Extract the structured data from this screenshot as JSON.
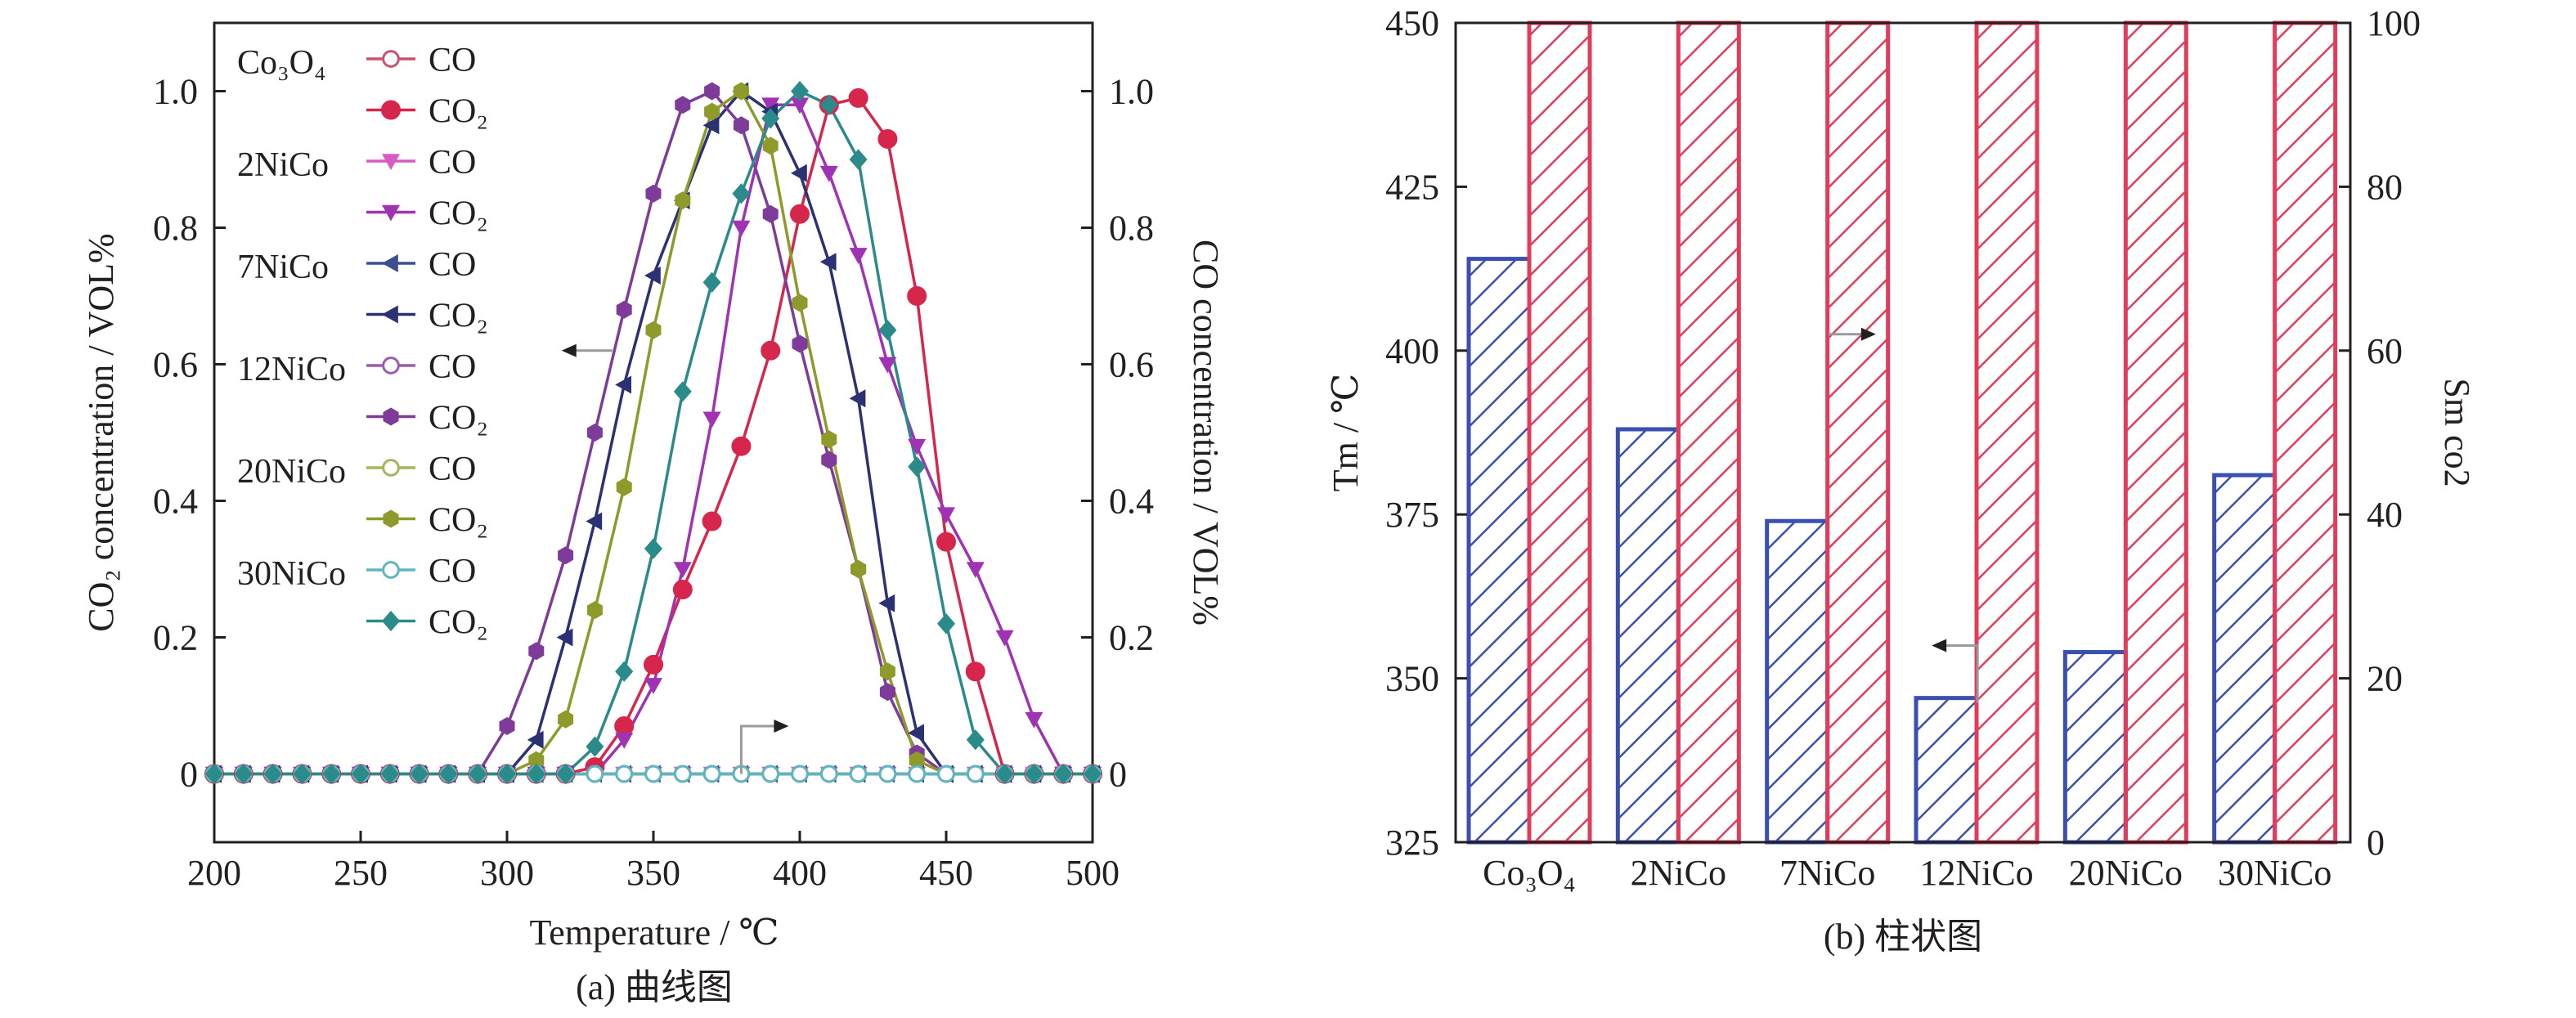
{
  "figure": {
    "caption_a": "(a) 曲线图",
    "caption_b": "(b) 柱状图"
  },
  "chart_data": [
    {
      "type": "line",
      "caption": "(a) 曲线图",
      "xlabel": "Temperature / ℃",
      "ylabel": "CO₂ concentration / VOL%",
      "y2label": "CO concentration / VOL%",
      "xlim": [
        200,
        500
      ],
      "ylim": [
        -0.1,
        1.1
      ],
      "xticks": [
        "200",
        "250",
        "300",
        "350",
        "400",
        "450",
        "500"
      ],
      "yticks": [
        "0",
        "0.2",
        "0.4",
        "0.6",
        "0.8",
        "1.0"
      ],
      "y2ticks": [
        "0",
        "0.2",
        "0.4",
        "0.6",
        "0.8",
        "1.0"
      ],
      "grid": false,
      "legend_position": "top-left",
      "legend_groups": [
        "Co₃O₄",
        "2NiCo",
        "7NiCo",
        "12NiCo",
        "20NiCo",
        "30NiCo"
      ],
      "series": [
        {
          "name": "CO",
          "group": "Co₃O₄",
          "marker": "circle-open",
          "color": "#c8536b",
          "x": [
            200,
            210,
            220,
            230,
            240,
            250,
            260,
            270,
            280,
            290,
            300,
            310,
            320,
            330,
            340,
            350,
            360,
            370,
            380,
            390,
            400,
            410,
            420,
            430,
            440,
            450,
            460,
            470,
            480,
            490,
            500
          ],
          "y": [
            0,
            0,
            0,
            0,
            0,
            0,
            0,
            0,
            0,
            0,
            0,
            0,
            0,
            0,
            0,
            0,
            0,
            0,
            0,
            0,
            0,
            0,
            0,
            0,
            0,
            0,
            0,
            0,
            0,
            0,
            0
          ]
        },
        {
          "name": "CO₂",
          "group": "Co₃O₄",
          "marker": "circle",
          "color": "#d7264b",
          "x": [
            200,
            210,
            220,
            230,
            240,
            250,
            260,
            270,
            280,
            290,
            300,
            310,
            320,
            330,
            340,
            350,
            360,
            370,
            380,
            390,
            400,
            410,
            420,
            430,
            440,
            450,
            460,
            470,
            480,
            490,
            500
          ],
          "y": [
            0,
            0,
            0,
            0,
            0,
            0,
            0,
            0,
            0,
            0,
            0,
            0,
            0,
            0.01,
            0.07,
            0.16,
            0.27,
            0.37,
            0.48,
            0.62,
            0.82,
            0.98,
            0.99,
            0.93,
            0.7,
            0.34,
            0.15,
            0,
            0,
            0,
            0
          ]
        },
        {
          "name": "CO",
          "group": "2NiCo",
          "marker": "triangle-down",
          "color": "#d65bc4",
          "x": [
            200,
            210,
            220,
            230,
            240,
            250,
            260,
            270,
            280,
            290,
            300,
            310,
            320,
            330,
            340,
            350,
            360,
            370,
            380,
            390,
            400,
            410,
            420,
            430,
            440,
            450,
            460,
            470,
            480,
            490,
            500
          ],
          "y": [
            0,
            0,
            0,
            0,
            0,
            0,
            0,
            0,
            0,
            0,
            0,
            0,
            0,
            0,
            0,
            0,
            0,
            0,
            0,
            0,
            0,
            0,
            0,
            0,
            0,
            0,
            0,
            0,
            0,
            0,
            0
          ]
        },
        {
          "name": "CO₂",
          "group": "2NiCo",
          "marker": "triangle-down",
          "color": "#a032b4",
          "x": [
            200,
            210,
            220,
            230,
            240,
            250,
            260,
            270,
            280,
            290,
            300,
            310,
            320,
            330,
            340,
            350,
            360,
            370,
            380,
            390,
            400,
            410,
            420,
            430,
            440,
            450,
            460,
            470,
            480,
            490,
            500
          ],
          "y": [
            0,
            0,
            0,
            0,
            0,
            0,
            0,
            0,
            0,
            0,
            0,
            0,
            0,
            0,
            0.05,
            0.13,
            0.3,
            0.52,
            0.8,
            0.98,
            0.98,
            0.88,
            0.76,
            0.6,
            0.48,
            0.38,
            0.3,
            0.2,
            0.08,
            0,
            0
          ]
        },
        {
          "name": "CO",
          "group": "7NiCo",
          "marker": "triangle-left",
          "color": "#3b4e8f",
          "x": [
            200,
            210,
            220,
            230,
            240,
            250,
            260,
            270,
            280,
            290,
            300,
            310,
            320,
            330,
            340,
            350,
            360,
            370,
            380,
            390,
            400,
            410,
            420,
            430,
            440,
            450,
            460,
            470,
            480,
            490,
            500
          ],
          "y": [
            0,
            0,
            0,
            0,
            0,
            0,
            0,
            0,
            0,
            0,
            0,
            0,
            0,
            0,
            0,
            0,
            0,
            0,
            0,
            0,
            0,
            0,
            0,
            0,
            0,
            0,
            0,
            0,
            0,
            0,
            0
          ]
        },
        {
          "name": "CO₂",
          "group": "7NiCo",
          "marker": "triangle-left",
          "color": "#2b3173",
          "x": [
            200,
            210,
            220,
            230,
            240,
            250,
            260,
            270,
            280,
            290,
            300,
            310,
            320,
            330,
            340,
            350,
            360,
            370,
            380,
            390,
            400,
            410,
            420,
            430,
            440,
            450,
            460,
            470,
            480,
            490,
            500
          ],
          "y": [
            0,
            0,
            0,
            0,
            0,
            0,
            0,
            0,
            0,
            0,
            0,
            0.05,
            0.2,
            0.37,
            0.57,
            0.73,
            0.84,
            0.95,
            1.0,
            0.97,
            0.88,
            0.75,
            0.55,
            0.25,
            0.06,
            0,
            0,
            0,
            0,
            0,
            0
          ]
        },
        {
          "name": "CO",
          "group": "12NiCo",
          "marker": "circle-open",
          "color": "#9b5bb0",
          "x": [
            200,
            210,
            220,
            230,
            240,
            250,
            260,
            270,
            280,
            290,
            300,
            310,
            320,
            330,
            340,
            350,
            360,
            370,
            380,
            390,
            400,
            410,
            420,
            430,
            440,
            450,
            460,
            470,
            480,
            490,
            500
          ],
          "y": [
            0,
            0,
            0,
            0,
            0,
            0,
            0,
            0,
            0,
            0,
            0,
            0,
            0,
            0,
            0,
            0,
            0,
            0,
            0,
            0,
            0,
            0,
            0,
            0,
            0,
            0,
            0,
            0,
            0,
            0,
            0
          ]
        },
        {
          "name": "CO₂",
          "group": "12NiCo",
          "marker": "hexagon",
          "color": "#7e3b99",
          "x": [
            200,
            210,
            220,
            230,
            240,
            250,
            260,
            270,
            280,
            290,
            300,
            310,
            320,
            330,
            340,
            350,
            360,
            370,
            380,
            390,
            400,
            410,
            420,
            430,
            440,
            450,
            460,
            470,
            480,
            490,
            500
          ],
          "y": [
            0,
            0,
            0,
            0,
            0,
            0,
            0,
            0,
            0,
            0,
            0.07,
            0.18,
            0.32,
            0.5,
            0.68,
            0.85,
            0.98,
            1.0,
            0.95,
            0.82,
            0.63,
            0.46,
            0.3,
            0.12,
            0.03,
            0,
            0,
            0,
            0,
            0,
            0
          ]
        },
        {
          "name": "CO",
          "group": "20NiCo",
          "marker": "circle-open",
          "color": "#a8b45a",
          "x": [
            200,
            210,
            220,
            230,
            240,
            250,
            260,
            270,
            280,
            290,
            300,
            310,
            320,
            330,
            340,
            350,
            360,
            370,
            380,
            390,
            400,
            410,
            420,
            430,
            440,
            450,
            460,
            470,
            480,
            490,
            500
          ],
          "y": [
            0,
            0,
            0,
            0,
            0,
            0,
            0,
            0,
            0,
            0,
            0,
            0,
            0,
            0,
            0,
            0,
            0,
            0,
            0,
            0,
            0,
            0,
            0,
            0,
            0,
            0,
            0,
            0,
            0,
            0,
            0
          ]
        },
        {
          "name": "CO₂",
          "group": "20NiCo",
          "marker": "hexagon",
          "color": "#8e9a2a",
          "x": [
            200,
            210,
            220,
            230,
            240,
            250,
            260,
            270,
            280,
            290,
            300,
            310,
            320,
            330,
            340,
            350,
            360,
            370,
            380,
            390,
            400,
            410,
            420,
            430,
            440,
            450,
            460,
            470,
            480,
            490,
            500
          ],
          "y": [
            0,
            0,
            0,
            0,
            0,
            0,
            0,
            0,
            0,
            0,
            0,
            0.02,
            0.08,
            0.24,
            0.42,
            0.65,
            0.84,
            0.97,
            1.0,
            0.92,
            0.69,
            0.49,
            0.3,
            0.15,
            0.02,
            0,
            0,
            0,
            0,
            0,
            0
          ]
        },
        {
          "name": "CO",
          "group": "30NiCo",
          "marker": "circle-open",
          "color": "#5db6c2",
          "x": [
            200,
            210,
            220,
            230,
            240,
            250,
            260,
            270,
            280,
            290,
            300,
            310,
            320,
            330,
            340,
            350,
            360,
            370,
            380,
            390,
            400,
            410,
            420,
            430,
            440,
            450,
            460,
            470,
            480,
            490,
            500
          ],
          "y": [
            0,
            0,
            0,
            0,
            0,
            0,
            0,
            0,
            0,
            0,
            0,
            0,
            0,
            0,
            0,
            0,
            0,
            0,
            0,
            0,
            0,
            0,
            0,
            0,
            0,
            0,
            0,
            0,
            0,
            0,
            0
          ]
        },
        {
          "name": "CO₂",
          "group": "30NiCo",
          "marker": "diamond",
          "color": "#2b8a8a",
          "x": [
            200,
            210,
            220,
            230,
            240,
            250,
            260,
            270,
            280,
            290,
            300,
            310,
            320,
            330,
            340,
            350,
            360,
            370,
            380,
            390,
            400,
            410,
            420,
            430,
            440,
            450,
            460,
            470,
            480,
            490,
            500
          ],
          "y": [
            0,
            0,
            0,
            0,
            0,
            0,
            0,
            0,
            0,
            0,
            0,
            0,
            0,
            0.04,
            0.15,
            0.33,
            0.56,
            0.72,
            0.85,
            0.96,
            1.0,
            0.98,
            0.9,
            0.65,
            0.45,
            0.22,
            0.05,
            0,
            0,
            0,
            0
          ]
        }
      ],
      "annotations": [
        {
          "type": "arrow",
          "direction": "left",
          "axis": "left",
          "at_x": 322,
          "at_y": 0.62
        },
        {
          "type": "arrow",
          "direction": "right",
          "axis": "right",
          "at_x": 380,
          "at_y": 0.07
        }
      ]
    },
    {
      "type": "bar",
      "caption": "(b) 柱状图",
      "categories": [
        "Co₃O₄",
        "2NiCo",
        "7NiCo",
        "12NiCo",
        "20NiCo",
        "30NiCo"
      ],
      "ylabel": "Tm / ℃",
      "y2label": "Sm co2",
      "ylim": [
        325,
        450
      ],
      "y2lim": [
        0,
        100
      ],
      "yticks": [
        "325",
        "350",
        "375",
        "400",
        "425",
        "450"
      ],
      "y2ticks": [
        "0",
        "20",
        "40",
        "60",
        "80",
        "100"
      ],
      "grid": false,
      "series": [
        {
          "name": "Tm",
          "axis": "left",
          "pattern": "hatch",
          "color": "#3a4fb0",
          "values": [
            414,
            388,
            374,
            347,
            354,
            381
          ]
        },
        {
          "name": "Sm co2",
          "axis": "right",
          "pattern": "hatch",
          "color": "#e23c5a",
          "values": [
            100,
            100,
            100,
            100,
            100,
            100
          ]
        }
      ],
      "annotations": [
        {
          "type": "arrow",
          "direction": "left",
          "axis": "left",
          "category": "12NiCo",
          "at_y": 355
        },
        {
          "type": "arrow",
          "direction": "right",
          "axis": "right",
          "category": "7NiCo",
          "at_y": 62
        }
      ]
    }
  ]
}
